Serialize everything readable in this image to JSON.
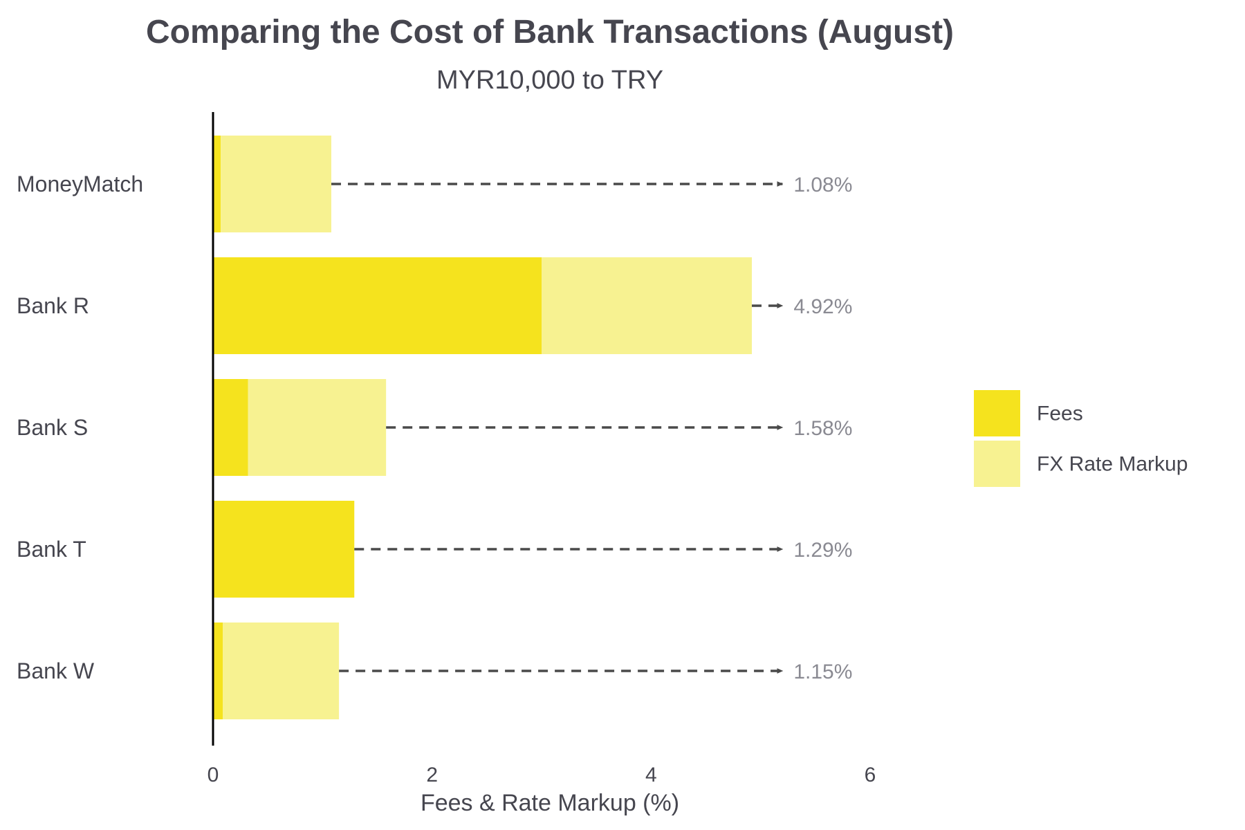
{
  "chart_data": {
    "type": "bar",
    "orientation": "horizontal",
    "stacked": true,
    "title": "Comparing the Cost of Bank Transactions (August)",
    "subtitle": "MYR10,000 to TRY",
    "xlabel": "Fees & Rate Markup (%)",
    "ylabel": "",
    "xlim": [
      0,
      6
    ],
    "xticks": [
      0,
      2,
      4,
      6
    ],
    "grid": false,
    "legend_position": "right",
    "categories": [
      "MoneyMatch",
      "Bank R",
      "Bank S",
      "Bank T",
      "Bank W"
    ],
    "series": [
      {
        "name": "Fees",
        "color": "#f5e31e",
        "values": [
          0.07,
          3.0,
          0.32,
          1.29,
          0.09
        ]
      },
      {
        "name": "FX Rate Markup",
        "color": "#f7f291",
        "values": [
          1.01,
          1.92,
          1.26,
          0.0,
          1.06
        ]
      }
    ],
    "totals": [
      "1.08%",
      "4.92%",
      "1.58%",
      "1.29%",
      "1.15%"
    ],
    "total_arrow_target_x": 5.2
  }
}
